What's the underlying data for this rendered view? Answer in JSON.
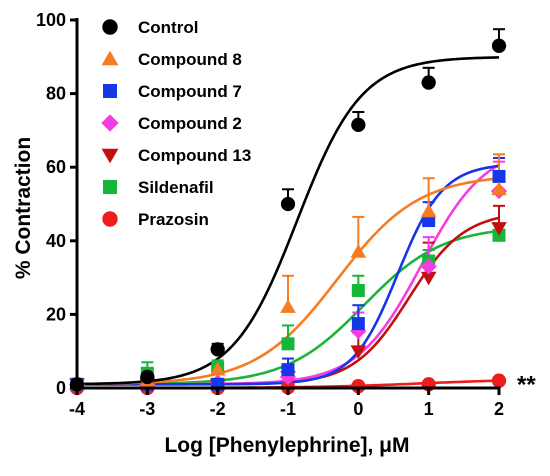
{
  "chart_data": {
    "type": "scatter",
    "xlabel": "Log [Phenylephrine], μM",
    "ylabel": "% Contraction",
    "xlim": [
      -4,
      2
    ],
    "ylim": [
      0,
      100
    ],
    "x_ticks": [
      "-4",
      "-3",
      "-2",
      "-1",
      "0",
      "1",
      "2"
    ],
    "y_ticks": [
      "0",
      "20",
      "40",
      "60",
      "80",
      "100"
    ],
    "x": [
      -4,
      -3,
      -2,
      -1,
      0,
      1,
      2
    ],
    "grid": false,
    "legend_position": "top-left",
    "annotation": {
      "text": "**",
      "x": 2,
      "y": 2
    },
    "series": [
      {
        "name": "Control",
        "marker": "circle",
        "color": "#000000",
        "values": [
          1,
          3,
          10.5,
          50,
          71.5,
          83,
          93
        ],
        "errors": [
          0,
          1,
          1.5,
          4,
          3.5,
          4,
          4.5
        ],
        "curve": {
          "bottom": 1,
          "top": 90,
          "log_ec50": -0.87,
          "hill": 0.95
        }
      },
      {
        "name": "Compound 8",
        "marker": "triangle-up",
        "color": "#f57c20",
        "values": [
          1,
          2,
          5,
          22,
          37,
          48,
          54
        ],
        "errors": [
          0,
          0,
          2,
          8.5,
          9.5,
          9,
          9.5
        ],
        "curve": {
          "bottom": 1,
          "top": 58,
          "log_ec50": -0.3,
          "hill": 0.75
        }
      },
      {
        "name": "Compound 7",
        "marker": "square",
        "color": "#1537e8",
        "values": [
          1,
          1,
          1,
          5,
          17.5,
          45.5,
          57.5
        ],
        "errors": [
          0,
          0,
          0,
          3,
          5,
          5,
          5
        ],
        "curve": {
          "bottom": 1,
          "top": 61,
          "log_ec50": 0.56,
          "hill": 1.35
        }
      },
      {
        "name": "Compound 2",
        "marker": "diamond",
        "color": "#f53ce0",
        "values": [
          1,
          1,
          1.5,
          3,
          15.5,
          33,
          53.5
        ],
        "errors": [
          0,
          0,
          0,
          2,
          5,
          8,
          8
        ],
        "curve": {
          "bottom": 1,
          "top": 66,
          "log_ec50": 0.9,
          "hill": 0.95
        }
      },
      {
        "name": "Compound 13",
        "marker": "triangle-down",
        "color": "#c01010",
        "values": [
          1,
          1,
          1,
          3,
          10,
          30,
          43.5
        ],
        "errors": [
          0,
          0,
          0,
          1.5,
          5,
          9.5,
          6
        ],
        "curve": {
          "bottom": 1,
          "top": 48,
          "log_ec50": 0.72,
          "hill": 1.1
        }
      },
      {
        "name": "Sildenafil",
        "marker": "square",
        "color": "#17b539",
        "values": [
          1,
          4,
          5.5,
          12,
          26.5,
          34.5,
          41.5
        ],
        "errors": [
          0,
          3,
          2,
          5,
          4,
          3,
          3
        ],
        "curve": {
          "bottom": 1,
          "top": 44,
          "log_ec50": 0.08,
          "hill": 0.78
        }
      },
      {
        "name": "Prazosin",
        "marker": "circle",
        "color": "#ee1c1c",
        "values": [
          0,
          0,
          0,
          0.2,
          0.5,
          1,
          2
        ],
        "errors": [
          0,
          0,
          0,
          0,
          0,
          0,
          0
        ],
        "curve": {
          "bottom": 0,
          "top": 2.5,
          "log_ec50": 0.9,
          "hill": 0.55
        }
      }
    ]
  }
}
